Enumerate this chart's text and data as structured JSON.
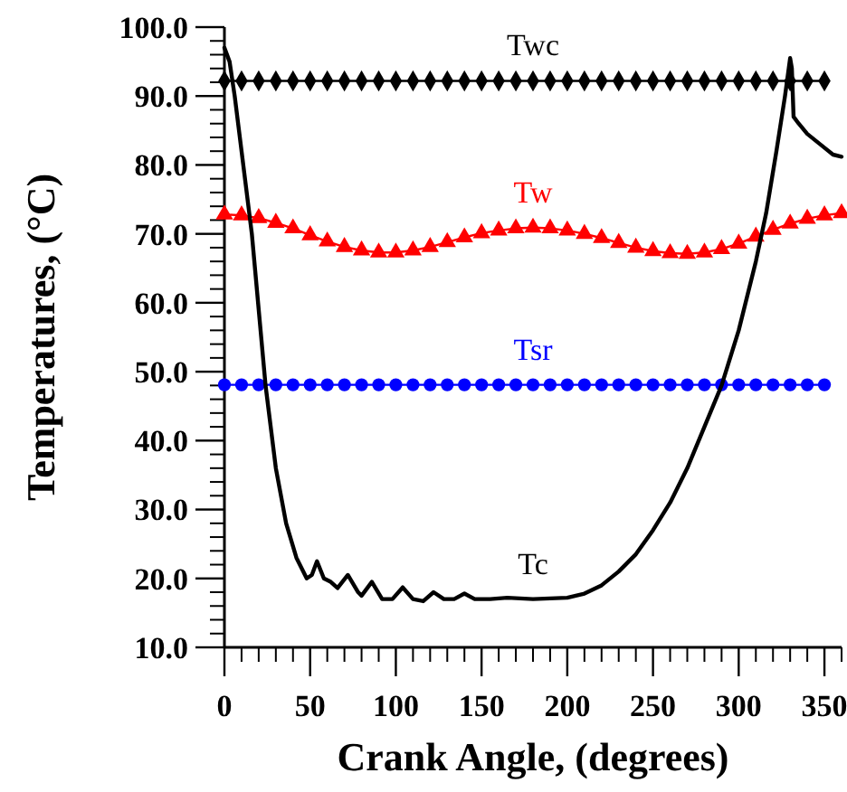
{
  "chart_data": {
    "type": "line",
    "xlabel": "Crank Angle, (degrees)",
    "ylabel": "Temperatures, (°C)",
    "xlim": [
      0,
      360
    ],
    "ylim": [
      10,
      100
    ],
    "xticks": [
      0,
      50,
      100,
      150,
      200,
      250,
      300,
      350
    ],
    "yticks": [
      {
        "value": 10,
        "label": "10.0"
      },
      {
        "value": 20,
        "label": "20.0"
      },
      {
        "value": 30,
        "label": "30.0"
      },
      {
        "value": 40,
        "label": "40.0"
      },
      {
        "value": 50,
        "label": "50.0"
      },
      {
        "value": 60,
        "label": "60.0"
      },
      {
        "value": 70,
        "label": "70.0"
      },
      {
        "value": 80,
        "label": "80.0"
      },
      {
        "value": 90,
        "label": "90.0"
      },
      {
        "value": 100,
        "label": "100.0"
      }
    ],
    "grid": false,
    "line_style": "solid",
    "series": [
      {
        "name": "Twc",
        "color": "#000000",
        "marker": "diamond",
        "x": [
          0,
          10,
          20,
          30,
          40,
          50,
          60,
          70,
          80,
          90,
          100,
          110,
          120,
          130,
          140,
          150,
          160,
          170,
          180,
          190,
          200,
          210,
          220,
          230,
          240,
          250,
          260,
          270,
          280,
          290,
          300,
          310,
          320,
          330,
          340,
          350
        ],
        "values": [
          92.2,
          92.2,
          92.2,
          92.2,
          92.2,
          92.2,
          92.2,
          92.2,
          92.2,
          92.2,
          92.2,
          92.2,
          92.2,
          92.2,
          92.2,
          92.2,
          92.2,
          92.2,
          92.2,
          92.2,
          92.2,
          92.2,
          92.2,
          92.2,
          92.2,
          92.2,
          92.2,
          92.2,
          92.2,
          92.2,
          92.2,
          92.2,
          92.2,
          92.2,
          92.2,
          92.2
        ]
      },
      {
        "name": "Tw",
        "color": "#ff0000",
        "marker": "triangle",
        "x": [
          0,
          10,
          20,
          30,
          40,
          50,
          60,
          70,
          80,
          90,
          100,
          110,
          120,
          130,
          140,
          150,
          160,
          170,
          180,
          190,
          200,
          210,
          220,
          230,
          240,
          250,
          260,
          270,
          280,
          290,
          300,
          310,
          320,
          330,
          340,
          350,
          360
        ],
        "values": [
          72.8,
          72.7,
          72.3,
          71.6,
          70.8,
          69.8,
          68.9,
          68.1,
          67.6,
          67.3,
          67.3,
          67.6,
          68.1,
          68.8,
          69.5,
          70.1,
          70.5,
          70.8,
          70.9,
          70.8,
          70.5,
          70.0,
          69.4,
          68.7,
          68.0,
          67.5,
          67.2,
          67.1,
          67.3,
          67.8,
          68.6,
          69.6,
          70.6,
          71.5,
          72.2,
          72.7,
          73.0
        ]
      },
      {
        "name": "Tsr",
        "color": "#0000ff",
        "marker": "circle",
        "x": [
          0,
          10,
          20,
          30,
          40,
          50,
          60,
          70,
          80,
          90,
          100,
          110,
          120,
          130,
          140,
          150,
          160,
          170,
          180,
          190,
          200,
          210,
          220,
          230,
          240,
          250,
          260,
          270,
          280,
          290,
          300,
          310,
          320,
          330,
          340,
          350
        ],
        "values": [
          48.1,
          48.1,
          48.1,
          48.1,
          48.1,
          48.1,
          48.1,
          48.1,
          48.1,
          48.1,
          48.1,
          48.1,
          48.1,
          48.1,
          48.1,
          48.1,
          48.1,
          48.1,
          48.1,
          48.1,
          48.1,
          48.1,
          48.1,
          48.1,
          48.1,
          48.1,
          48.1,
          48.1,
          48.1,
          48.1,
          48.1,
          48.1,
          48.1,
          48.1,
          48.1,
          48.1
        ]
      },
      {
        "name": "Tc",
        "color": "#000000",
        "marker": "none",
        "x": [
          0,
          3,
          6,
          10,
          16,
          20,
          24,
          30,
          36,
          42,
          48,
          51,
          54,
          58,
          62,
          66,
          72,
          78,
          80,
          86,
          92,
          98,
          104,
          110,
          116,
          122,
          128,
          134,
          140,
          146,
          155,
          165,
          180,
          200,
          210,
          220,
          230,
          240,
          250,
          260,
          270,
          280,
          290,
          300,
          310,
          316,
          322,
          327,
          330,
          331,
          332,
          335,
          340,
          350,
          355,
          360
        ],
        "values": [
          97,
          95,
          90,
          82,
          70,
          59,
          48,
          36,
          28,
          23,
          20,
          20.5,
          22.5,
          20,
          19.5,
          18.6,
          20.5,
          18,
          17.5,
          19.5,
          17,
          17,
          18.7,
          17,
          16.7,
          18,
          17,
          17,
          17.8,
          17,
          17,
          17.2,
          17,
          17.2,
          17.8,
          19,
          21,
          23.5,
          27,
          31,
          36,
          42,
          48,
          56,
          66,
          73,
          82,
          90,
          95.5,
          94,
          87,
          86,
          84.5,
          82.5,
          81.5,
          81.2
        ]
      }
    ]
  }
}
